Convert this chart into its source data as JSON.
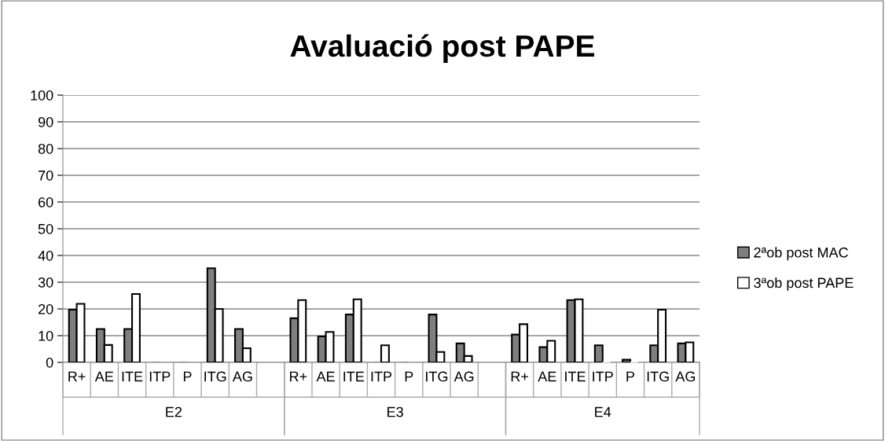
{
  "chart_data": {
    "type": "bar",
    "title": "Avaluació post PAPE",
    "categories": [
      "R+",
      "AE",
      "ITE",
      "ITP",
      "P",
      "ITG",
      "AG",
      null,
      "R+",
      "AE",
      "ITE",
      "ITP",
      "P",
      "ITG",
      "AG",
      null,
      "R+",
      "AE",
      "ITE",
      "ITP",
      "P",
      "ITG",
      "AG"
    ],
    "annotations": [
      "E2",
      "E3",
      "E4"
    ],
    "series": [
      {
        "name": "2ªob post MAC",
        "color": "#7f7f7f",
        "values": [
          19.7,
          12.5,
          12.5,
          0,
          0,
          35.2,
          12.5,
          null,
          16.5,
          9.7,
          17.9,
          0,
          0,
          17.9,
          7.1,
          null,
          10.4,
          5.7,
          23.3,
          6.4,
          1.0,
          6.4,
          7.1
        ]
      },
      {
        "name": "3ªob post PAPE",
        "color": "#ffffff",
        "values": [
          21.9,
          6.5,
          25.6,
          null,
          null,
          20,
          5.3,
          null,
          23.3,
          11.4,
          23.6,
          6.4,
          null,
          3.9,
          2.4,
          null,
          14.3,
          8.1,
          23.6,
          0,
          0,
          19.7,
          7.5
        ]
      }
    ],
    "ylim": [
      0,
      100
    ],
    "yticks": [
      0,
      10,
      20,
      30,
      40,
      50,
      60,
      70,
      80,
      90,
      100
    ],
    "grid": "y",
    "legend": "right"
  }
}
